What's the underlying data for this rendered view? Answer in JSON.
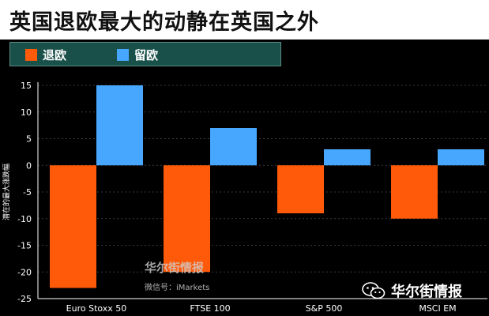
{
  "colors": {
    "leave": "#ff5a0a",
    "remain": "#47a7ff",
    "axis": "#ffffff",
    "grid": "#3a3a3a",
    "background": "#000000",
    "legend_bg": "#19504a"
  },
  "chart_data": {
    "type": "bar",
    "title": "英国退欧最大的动静在英国之外",
    "ylabel": "潜在的最大涨跌幅",
    "xlabel": "",
    "ylim": [
      -25,
      15
    ],
    "yticks": [
      -25,
      -20,
      -15,
      -10,
      -5,
      0,
      5,
      10,
      15
    ],
    "grid": true,
    "legend_position": "top-left",
    "categories": [
      "Euro Stoxx 50",
      "FTSE 100",
      "S&P 500",
      "MSCI EM"
    ],
    "series": [
      {
        "name": "退欧",
        "color": "#ff5a0a",
        "values": [
          -23,
          -20,
          -9,
          -10
        ]
      },
      {
        "name": "留欧",
        "color": "#47a7ff",
        "values": [
          15,
          7,
          3,
          3
        ]
      }
    ]
  },
  "watermark": {
    "brand": "华尔街情报",
    "subtitle": "微信号：iMarkets"
  },
  "badge": {
    "icon": "wechat-icon",
    "text": "华尔街情报"
  }
}
